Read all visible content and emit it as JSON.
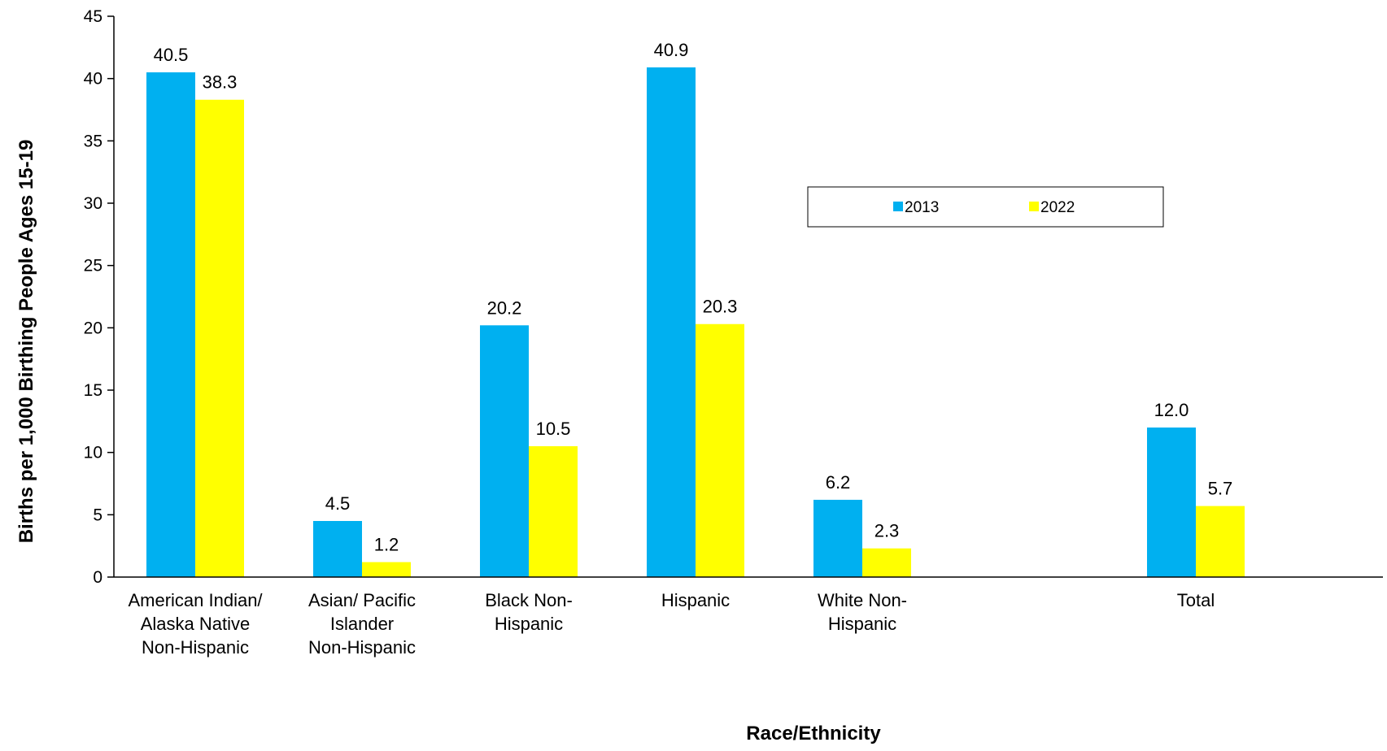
{
  "chart_data": {
    "type": "bar",
    "categories": [
      "American Indian/ Alaska Native Non-Hispanic",
      "Asian/ Pacific Islander Non-Hispanic",
      "Black Non-Hispanic",
      "Hispanic",
      "White Non-Hispanic",
      "Total"
    ],
    "category_lines": [
      [
        "American Indian/",
        "Alaska Native",
        "Non-Hispanic"
      ],
      [
        "Asian/ Pacific",
        "Islander",
        "Non-Hispanic"
      ],
      [
        "Black Non-",
        "Hispanic"
      ],
      [
        "Hispanic"
      ],
      [
        "White Non-",
        "Hispanic"
      ],
      [
        "Total"
      ]
    ],
    "series": [
      {
        "name": "2013",
        "color": "#00B0F0",
        "values": [
          40.5,
          4.5,
          20.2,
          40.9,
          6.2,
          12.0
        ],
        "labels": [
          "40.5",
          "4.5",
          "20.2",
          "40.9",
          "6.2",
          "12.0"
        ]
      },
      {
        "name": "2022",
        "color": "#FFFF00",
        "values": [
          38.3,
          1.2,
          10.5,
          20.3,
          2.3,
          5.7
        ],
        "labels": [
          "38.3",
          "1.2",
          "10.5",
          "20.3",
          "2.3",
          "5.7"
        ]
      }
    ],
    "title": "",
    "xlabel": "Race/Ethnicity",
    "ylabel": "Births per 1,000 Birthing People Ages 15-19",
    "ylim": [
      0,
      45
    ],
    "yticks": [
      0,
      5,
      10,
      15,
      20,
      25,
      30,
      35,
      40,
      45
    ],
    "grid": false,
    "legend_position": "upper-right-center"
  }
}
